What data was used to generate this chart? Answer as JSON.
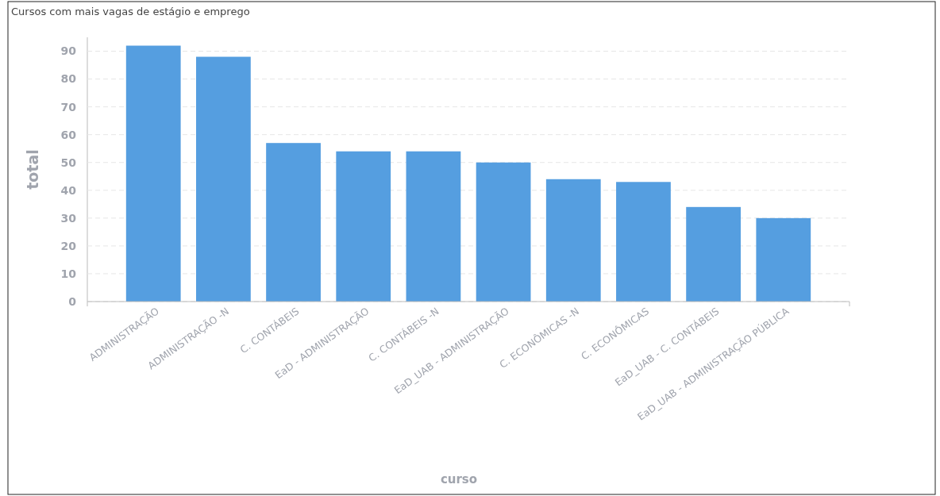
{
  "chart_data": {
    "type": "bar",
    "title": "Cursos com mais vagas de estágio e emprego",
    "xlabel": "curso",
    "ylabel": "total",
    "categories": [
      "ADMINISTRAÇÃO",
      "ADMINISTRAÇÃO -N",
      "C. CONTÁBEIS",
      "EaD - ADMINISTRAÇÃO",
      "C. CONTÁBEIS -N",
      "EaD_UAB - ADMINISTRAÇÃO",
      "C. ECONÔMICAS -N",
      "C. ECONÔMICAS",
      "EaD_UAB - C. CONTÁBEIS",
      "EaD_UAB - ADMINISTRAÇÃO PÚBLICA"
    ],
    "values": [
      92,
      88,
      57,
      54,
      54,
      50,
      44,
      43,
      34,
      30
    ],
    "color": "#559ee0",
    "ylim": [
      0,
      95
    ],
    "yticks": [
      0,
      10,
      20,
      30,
      40,
      50,
      60,
      70,
      80,
      90
    ],
    "grid": "y"
  }
}
